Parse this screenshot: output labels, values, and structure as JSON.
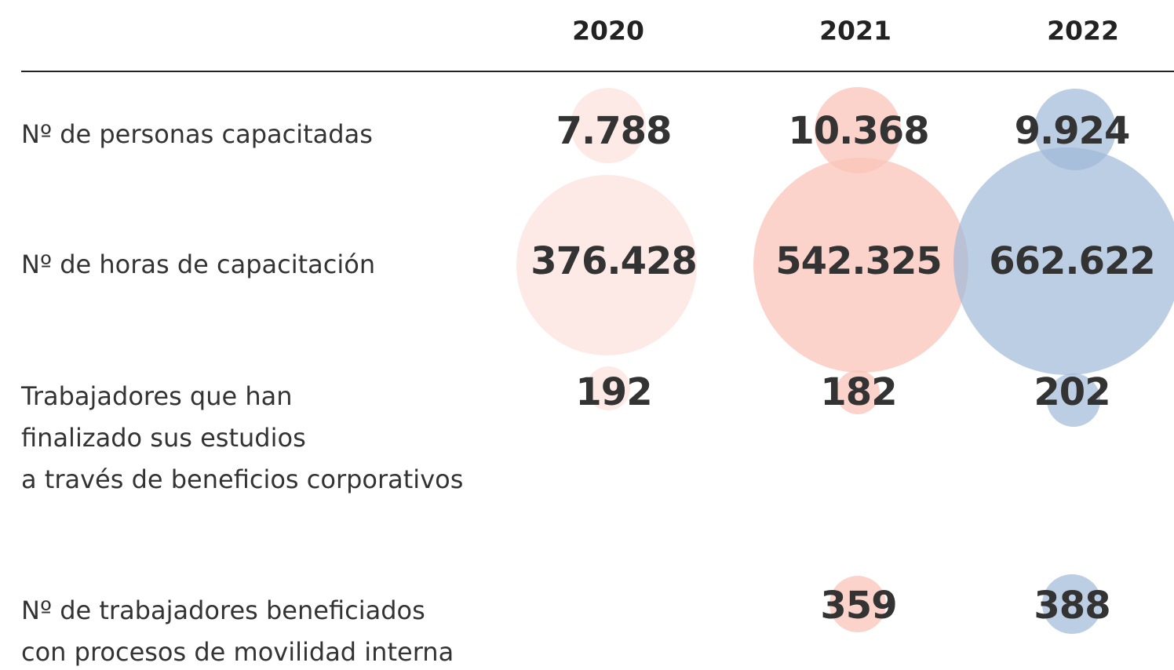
{
  "header": {
    "years": [
      "2020",
      "2021",
      "2022"
    ]
  },
  "table": {
    "rows": [
      {
        "label": [
          "Nº de personas capacitadas"
        ],
        "values": [
          "7.788",
          "10.368",
          "9.924"
        ]
      },
      {
        "label": [
          "Nº de horas de capacitación"
        ],
        "values": [
          "376.428",
          "542.325",
          "662.622"
        ]
      },
      {
        "label": [
          "Trabajadores que han",
          "finalizado sus estudios",
          "a través de beneficios corporativos"
        ],
        "values": [
          "192",
          "182",
          "202"
        ]
      },
      {
        "label": [
          "Nº de trabajadores beneficiados",
          "con procesos de movilidad interna"
        ],
        "values": [
          null,
          "359",
          "388"
        ]
      }
    ]
  }
}
